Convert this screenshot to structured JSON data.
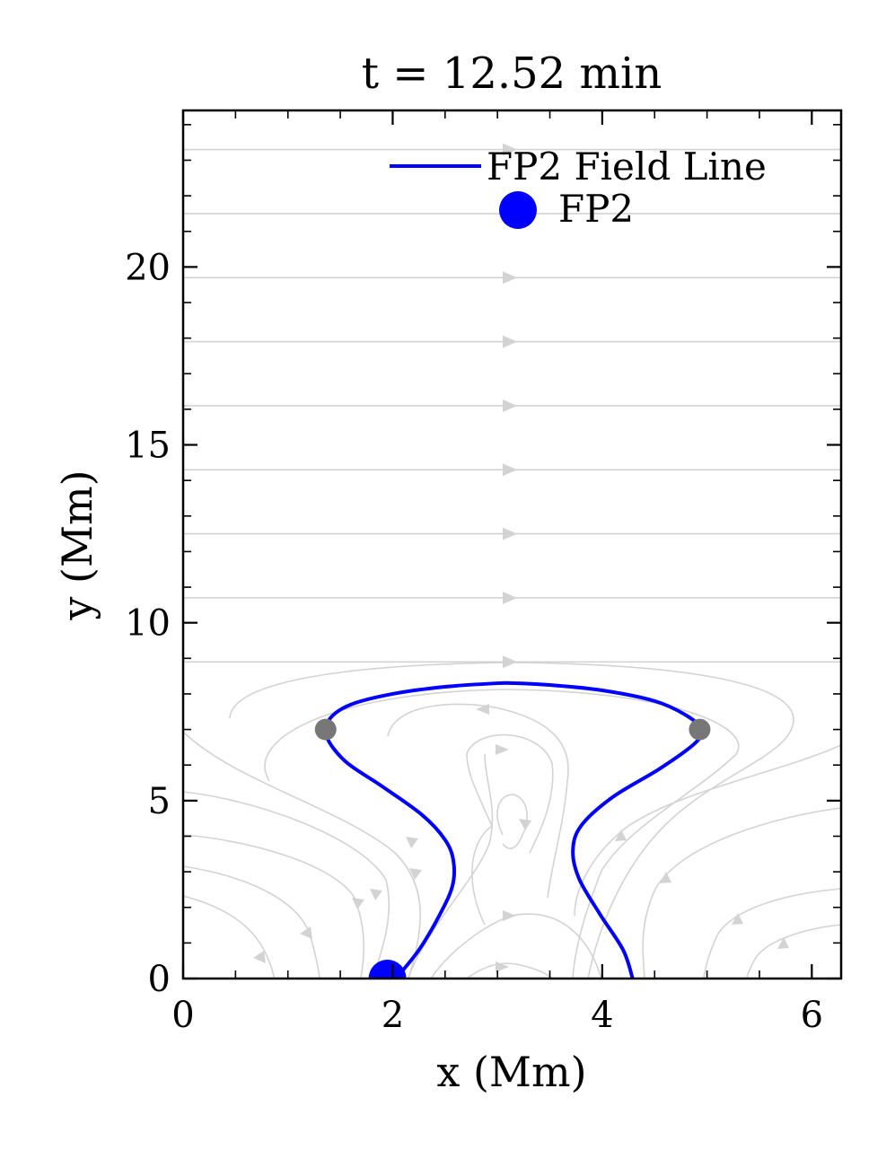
{
  "chart_data": {
    "type": "line",
    "title": "t = 12.52 min",
    "xlabel": "x (Mm)",
    "ylabel": "y (Mm)",
    "xlim": [
      0,
      6.28
    ],
    "ylim": [
      0,
      24.4
    ],
    "xticks": [
      0,
      2,
      4,
      6
    ],
    "xtick_labels": [
      "0",
      "2",
      "4",
      "6"
    ],
    "yticks": [
      0,
      5,
      10,
      15,
      20
    ],
    "ytick_labels": [
      "0",
      "5",
      "10",
      "15",
      "20"
    ],
    "grid": false,
    "legend_position": "top-right",
    "legend": [
      {
        "label": "FP2 Field Line",
        "kind": "line",
        "color": "#0000ff"
      },
      {
        "label": "FP2",
        "kind": "marker",
        "color": "#0000ff"
      }
    ],
    "series": [
      {
        "name": "FP2 Field Line",
        "color": "#0000ff",
        "x": [
          2.03,
          2.25,
          2.45,
          2.57,
          2.58,
          2.5,
          2.28,
          1.9,
          1.55,
          1.37,
          1.4,
          1.6,
          2.0,
          2.5,
          3.0,
          3.17,
          3.5,
          4.0,
          4.5,
          4.8,
          4.95,
          4.88,
          4.55,
          4.1,
          3.8,
          3.72,
          3.78,
          3.98,
          4.2,
          4.29
        ],
        "y": [
          0.0,
          0.8,
          1.8,
          2.6,
          3.3,
          3.9,
          4.6,
          5.4,
          6.1,
          6.8,
          7.3,
          7.7,
          8.0,
          8.2,
          8.3,
          8.3,
          8.25,
          8.1,
          7.8,
          7.4,
          7.0,
          6.6,
          5.9,
          5.1,
          4.3,
          3.6,
          2.8,
          1.8,
          0.8,
          0.0
        ]
      }
    ],
    "points": [
      {
        "name": "FP2",
        "x": 1.95,
        "y": 0.0,
        "color": "#0000ff"
      },
      {
        "name": "loop-point-left",
        "x": 1.36,
        "y": 7.0,
        "color": "#777777"
      },
      {
        "name": "loop-point-right",
        "x": 4.93,
        "y": 7.0,
        "color": "#777777"
      }
    ],
    "streamlines": {
      "color": "#d3d3d3",
      "horizontal_levels": [
        23.3,
        21.5,
        19.7,
        17.9,
        16.1,
        14.3,
        12.5,
        10.7,
        8.9
      ],
      "arrow_x": 3.05
    }
  }
}
